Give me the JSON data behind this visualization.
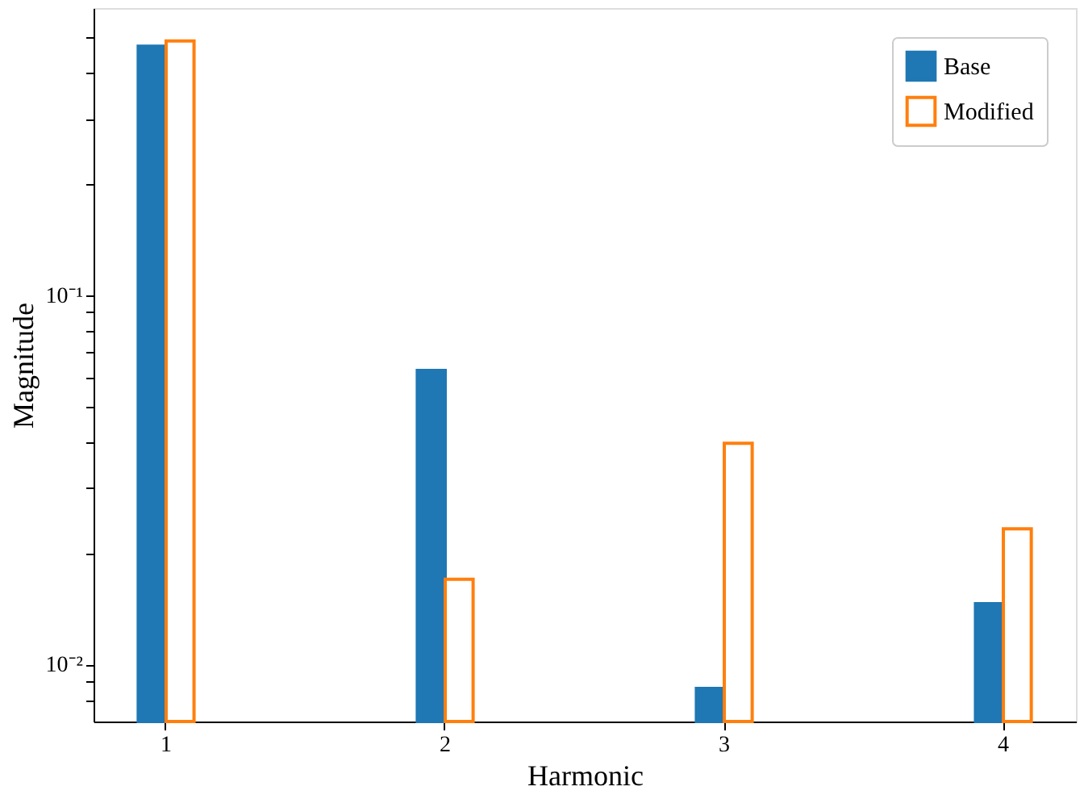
{
  "chart_data": {
    "type": "bar",
    "xlabel": "Harmonic",
    "ylabel": "Magnitude",
    "categories": [
      "1",
      "2",
      "3",
      "4"
    ],
    "series": [
      {
        "name": "Base",
        "color": "#1f77b4",
        "values": [
          0.473,
          0.0626,
          0.0086,
          0.0146
        ]
      },
      {
        "name": "Modified",
        "color": "#ff7f0e",
        "values": [
          0.489,
          0.017,
          0.0397,
          0.0233
        ]
      }
    ],
    "log": "y",
    "ylim": [
      0.007,
      0.6
    ],
    "yticks": [
      {
        "value": 0.008,
        "label": null
      },
      {
        "value": 0.009,
        "label": null
      },
      {
        "value": 0.01,
        "label": "10⁻²"
      },
      {
        "value": 0.02,
        "label": null
      },
      {
        "value": 0.03,
        "label": null
      },
      {
        "value": 0.04,
        "label": null
      },
      {
        "value": 0.05,
        "label": null
      },
      {
        "value": 0.06,
        "label": null
      },
      {
        "value": 0.07,
        "label": null
      },
      {
        "value": 0.08,
        "label": null
      },
      {
        "value": 0.09,
        "label": null
      },
      {
        "value": 0.1,
        "label": "10⁻¹"
      },
      {
        "value": 0.2,
        "label": null
      },
      {
        "value": 0.3,
        "label": null
      },
      {
        "value": 0.4,
        "label": null
      },
      {
        "value": 0.5,
        "label": null
      }
    ],
    "legend": "top right",
    "grid": false
  }
}
